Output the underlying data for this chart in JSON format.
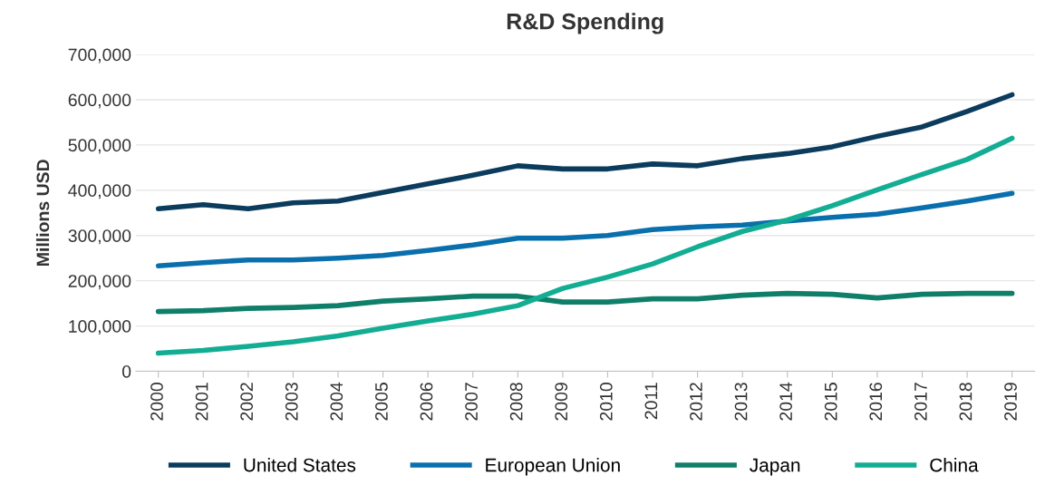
{
  "chart_data": {
    "type": "line",
    "title": "R&D Spending",
    "ylabel": "Millions USD",
    "categories": [
      "2000",
      "2001",
      "2002",
      "2003",
      "2004",
      "2005",
      "2006",
      "2007",
      "2008",
      "2009",
      "2010",
      "2011",
      "2012",
      "2013",
      "2014",
      "2015",
      "2016",
      "2017",
      "2018",
      "2019"
    ],
    "series": [
      {
        "name": "United States",
        "color": "#0b3c5d",
        "values": [
          359000,
          368000,
          359000,
          372000,
          376000,
          395000,
          414000,
          433000,
          454000,
          447000,
          447000,
          458000,
          454000,
          470000,
          481000,
          496000,
          519000,
          540000,
          574000,
          611000
        ]
      },
      {
        "name": "European Union",
        "color": "#0a6fad",
        "values": [
          233000,
          240000,
          246000,
          246000,
          250000,
          256000,
          267000,
          279000,
          294000,
          294000,
          300000,
          313000,
          319000,
          323000,
          332000,
          340000,
          347000,
          361000,
          376000,
          393000
        ]
      },
      {
        "name": "Japan",
        "color": "#0f7f6a",
        "values": [
          132000,
          134000,
          139000,
          141000,
          145000,
          155000,
          160000,
          166000,
          166000,
          153000,
          153000,
          160000,
          160000,
          168000,
          172000,
          170000,
          162000,
          170000,
          172000,
          172000
        ]
      },
      {
        "name": "China",
        "color": "#12ad93",
        "values": [
          40000,
          46000,
          55000,
          65000,
          78000,
          95000,
          111000,
          126000,
          145000,
          183000,
          208000,
          237000,
          275000,
          309000,
          334000,
          366000,
          401000,
          435000,
          468000,
          515000
        ]
      }
    ],
    "ylim": [
      0,
      700000
    ],
    "yticks": [
      {
        "value": 0,
        "label": "0"
      },
      {
        "value": 100000,
        "label": "100,000"
      },
      {
        "value": 200000,
        "label": "200,000"
      },
      {
        "value": 300000,
        "label": "300,000"
      },
      {
        "value": 400000,
        "label": "400,000"
      },
      {
        "value": 500000,
        "label": "500,000"
      },
      {
        "value": 600000,
        "label": "600,000"
      },
      {
        "value": 700000,
        "label": "700,000"
      }
    ],
    "grid": "y",
    "legend": "bottom",
    "marker": "none",
    "line_style": "solid"
  }
}
